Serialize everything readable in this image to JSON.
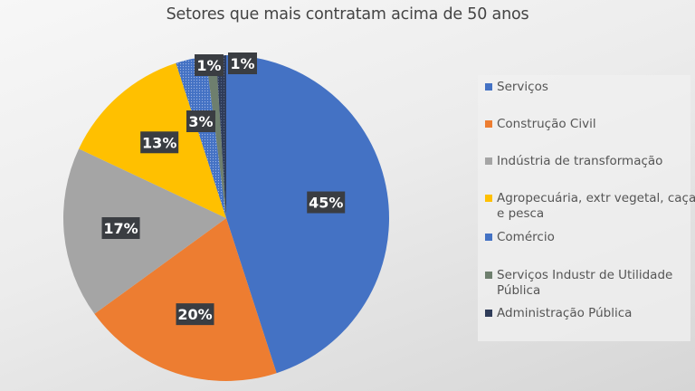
{
  "chart_data": {
    "type": "pie",
    "title": "Setores que mais contratam acima de 50 anos",
    "legend_position": "right",
    "start_angle": "12 o'clock, clockwise",
    "slices": [
      {
        "label": "Serviços",
        "value": 45,
        "data_label": "45%",
        "color": "#4472C4"
      },
      {
        "label": "Construção Civil",
        "value": 20,
        "data_label": "20%",
        "color": "#ED7D31"
      },
      {
        "label": "Indústria de transformação",
        "value": 17,
        "data_label": "17%",
        "color": "#A5A5A5"
      },
      {
        "label": "Agropecuária, extr vegetal, caça e pesca",
        "value": 13,
        "data_label": "13%",
        "color": "#FFC000"
      },
      {
        "label": "Comércio",
        "value": 3,
        "data_label": "3%",
        "color": "#4472C4"
      },
      {
        "label": "Serviços Industr de Utilidade Pública",
        "value": 1,
        "data_label": "1%",
        "color": "#6E7F6E"
      },
      {
        "label": "Administração Pública",
        "value": 1,
        "data_label": "1%",
        "color": "#2F3C59"
      }
    ]
  }
}
